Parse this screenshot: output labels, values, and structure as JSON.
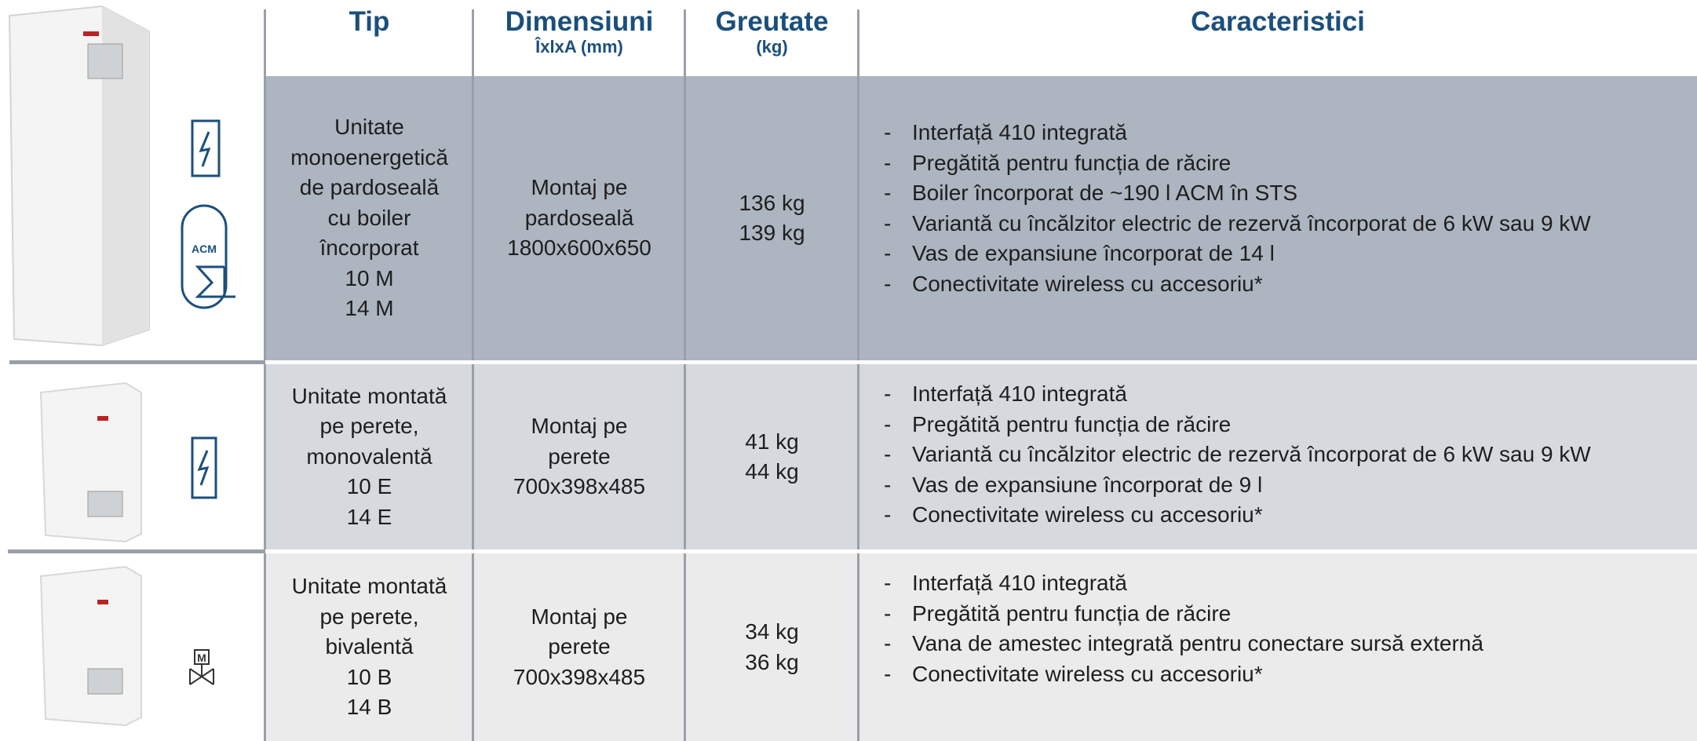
{
  "header": {
    "columns": [
      {
        "title": "Tip"
      },
      {
        "title": "Dimensiuni",
        "subtitle": "ÎxlxA (mm)"
      },
      {
        "title": "Greutate",
        "subtitle": "(kg)"
      },
      {
        "title": "Caracteristici"
      }
    ]
  },
  "rows": [
    {
      "icon_label": "ACM",
      "type_lines": [
        "Unitate",
        "monoenergetică",
        "de pardoseală",
        "cu boiler",
        "încorporat",
        "10 M",
        "14 M"
      ],
      "dimension_lines": [
        "Montaj pe",
        "pardoseală",
        "1800x600x650"
      ],
      "weights": [
        "136 kg",
        "139 kg"
      ],
      "features": [
        "Interfață 410 integrată",
        "Pregătită pentru funcția de răcire",
        "Boiler încorporat de ~190 l ACM în STS",
        "Variantă cu încălzitor electric de rezervă încorporat de 6 kW sau 9 kW",
        "Vas de expansiune încorporat de 14 l",
        "Conectivitate wireless cu accesoriu*"
      ]
    },
    {
      "type_lines": [
        "Unitate montată",
        "pe perete,",
        "monovalentă",
        "10 E",
        "14 E"
      ],
      "dimension_lines": [
        "Montaj pe",
        "perete",
        "700x398x485"
      ],
      "weights": [
        "41 kg",
        "44 kg"
      ],
      "features": [
        "Interfață 410 integrată",
        "Pregătită pentru funcția de răcire",
        "Variantă cu încălzitor electric de rezervă încorporat de 6 kW sau 9 kW",
        "Vas de expansiune încorporat de 9 l",
        "Conectivitate wireless cu accesoriu*"
      ]
    },
    {
      "icon_label": "M",
      "type_lines": [
        "Unitate montată",
        "pe perete,",
        "bivalentă",
        "10 B",
        "14 B"
      ],
      "dimension_lines": [
        "Montaj pe",
        "perete",
        "700x398x485"
      ],
      "weights": [
        "34 kg",
        "36 kg"
      ],
      "features": [
        "Interfață 410 integrată",
        "Pregătită pentru funcția de răcire",
        "Vana de amestec integrată pentru conectare sursă externă",
        "Conectivitate wireless cu accesoriu*"
      ]
    }
  ]
}
